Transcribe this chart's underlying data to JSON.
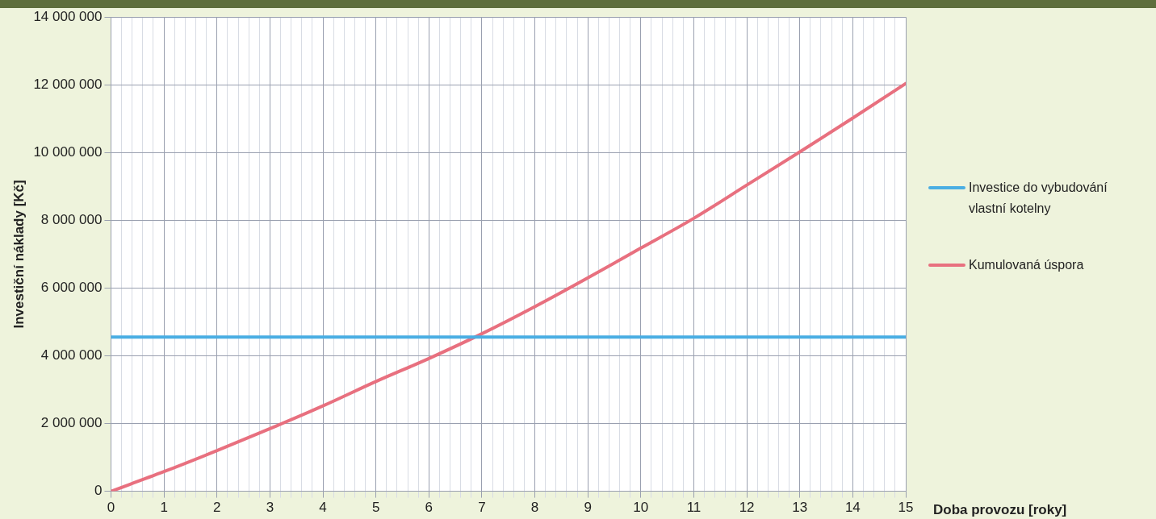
{
  "chart_data": {
    "type": "line",
    "xlabel": "Doba provozu [roky]",
    "ylabel": "Investiční náklady [Kč]",
    "x": [
      0,
      1,
      2,
      3,
      4,
      5,
      6,
      7,
      8,
      9,
      10,
      11,
      12,
      13,
      14,
      15
    ],
    "series": [
      {
        "name": "Investice do vybudování vlastní kotelny",
        "color": "#4aaee3",
        "values": [
          4550000,
          4550000,
          4550000,
          4550000,
          4550000,
          4550000,
          4550000,
          4550000,
          4550000,
          4550000,
          4550000,
          4550000,
          4550000,
          4550000,
          4550000,
          4550000
        ]
      },
      {
        "name": "Kumulovaná úspora",
        "color": "#e8707f",
        "values": [
          0,
          580000,
          1200000,
          1850000,
          2520000,
          3240000,
          3920000,
          4650000,
          5450000,
          6300000,
          7180000,
          8060000,
          9040000,
          10020000,
          11020000,
          12040000
        ]
      }
    ],
    "xlim": [
      0,
      15
    ],
    "xticks": [
      0,
      {
        "value": 0.2,
        "label": null
      },
      {
        "value": 0.4,
        "label": null
      },
      {
        "value": 0.6,
        "label": null
      },
      {
        "value": 0.8,
        "label": null
      },
      1,
      {
        "value": 1.2,
        "label": null
      },
      {
        "value": 1.4,
        "label": null
      },
      {
        "value": 1.6,
        "label": null
      },
      {
        "value": 1.8,
        "label": null
      },
      2,
      {
        "value": 2.2,
        "label": null
      },
      {
        "value": 2.4,
        "label": null
      },
      {
        "value": 2.6,
        "label": null
      },
      {
        "value": 2.8,
        "label": null
      },
      3,
      {
        "value": 3.2,
        "label": null
      },
      {
        "value": 3.4,
        "label": null
      },
      {
        "value": 3.6,
        "label": null
      },
      {
        "value": 3.8,
        "label": null
      },
      4,
      {
        "value": 4.2,
        "label": null
      },
      {
        "value": 4.4,
        "label": null
      },
      {
        "value": 4.6,
        "label": null
      },
      {
        "value": 4.8,
        "label": null
      },
      5,
      {
        "value": 5.2,
        "label": null
      },
      {
        "value": 5.4,
        "label": null
      },
      {
        "value": 5.6,
        "label": null
      },
      {
        "value": 5.8,
        "label": null
      },
      6,
      {
        "value": 6.2,
        "label": null
      },
      {
        "value": 6.4,
        "label": null
      },
      {
        "value": 6.6,
        "label": null
      },
      {
        "value": 6.8,
        "label": null
      },
      7,
      {
        "value": 7.2,
        "label": null
      },
      {
        "value": 7.4,
        "label": null
      },
      {
        "value": 7.6,
        "label": null
      },
      {
        "value": 7.8,
        "label": null
      },
      8,
      {
        "value": 8.2,
        "label": null
      },
      {
        "value": 8.4,
        "label": null
      },
      {
        "value": 8.6,
        "label": null
      },
      {
        "value": 8.8,
        "label": null
      },
      9,
      {
        "value": 9.2,
        "label": null
      },
      {
        "value": 9.4,
        "label": null
      },
      {
        "value": 9.6,
        "label": null
      },
      {
        "value": 9.8,
        "label": null
      },
      10,
      {
        "value": 10.2,
        "label": null
      },
      {
        "value": 10.4,
        "label": null
      },
      {
        "value": 10.6,
        "label": null
      },
      {
        "value": 10.8,
        "label": null
      },
      11,
      {
        "value": 11.2,
        "label": null
      },
      {
        "value": 11.4,
        "label": null
      },
      {
        "value": 11.6,
        "label": null
      },
      {
        "value": 11.8,
        "label": null
      },
      12,
      {
        "value": 12.2,
        "label": null
      },
      {
        "value": 12.4,
        "label": null
      },
      {
        "value": 12.6,
        "label": null
      },
      {
        "value": 12.8,
        "label": null
      },
      13,
      {
        "value": 13.2,
        "label": null
      },
      {
        "value": 13.4,
        "label": null
      },
      {
        "value": 13.6,
        "label": null
      },
      {
        "value": 13.8,
        "label": null
      },
      14,
      {
        "value": 14.2,
        "label": null
      },
      {
        "value": 14.4,
        "label": null
      },
      {
        "value": 14.6,
        "label": null
      },
      {
        "value": 14.8,
        "label": null
      },
      15
    ],
    "ylim": [
      0,
      14000000
    ],
    "yticks": [
      0,
      {
        "value": 2000000,
        "label": "2 000 000"
      },
      {
        "value": 4000000,
        "label": "4 000 000"
      },
      {
        "value": 6000000,
        "label": "6 000 000"
      },
      {
        "value": 8000000,
        "label": "8 000 000"
      },
      {
        "value": 10000000,
        "label": "10 000 000"
      },
      {
        "value": 12000000,
        "label": "12 000 000"
      },
      {
        "value": 14000000,
        "label": "14 000 000"
      }
    ],
    "grid": true,
    "legend": "right",
    "marker": "none",
    "line_style": "solid"
  }
}
